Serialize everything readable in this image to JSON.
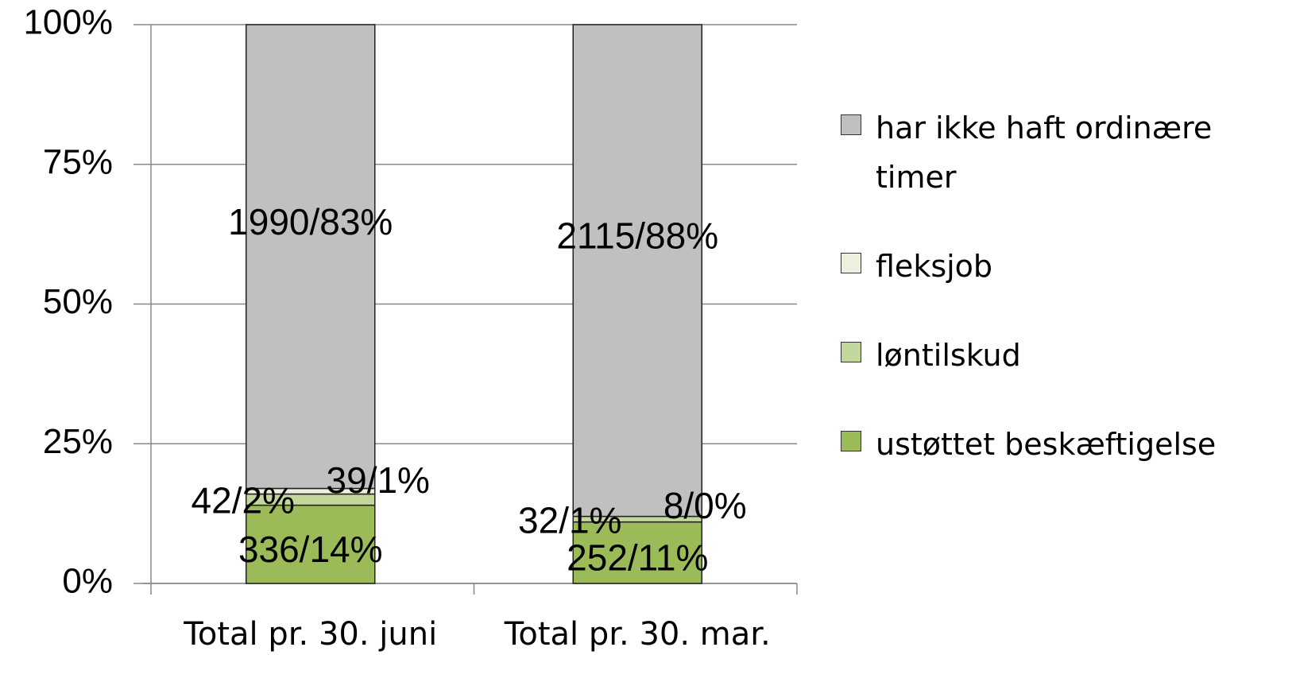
{
  "chart_data": {
    "type": "stacked_bar",
    "categories": [
      "Total pr. 30. juni",
      "Total pr. 30. mar."
    ],
    "series": [
      {
        "name": "ustøttet beskæftigelse",
        "color": "#9bbb59",
        "values": [
          14,
          11
        ],
        "value_labels": [
          "336/14%",
          "252/11%"
        ]
      },
      {
        "name": "løntilskud",
        "color": "#c3d69b",
        "values": [
          2,
          1
        ],
        "value_labels": [
          "42/2%",
          "32/1%"
        ]
      },
      {
        "name": "fleksjob",
        "color": "#ebf1de",
        "values": [
          1,
          0
        ],
        "value_labels": [
          "39/1%",
          "8/0%"
        ]
      },
      {
        "name": "har ikke haft ordinære timer",
        "color": "#c0c0c0",
        "values": [
          83,
          88
        ],
        "value_labels": [
          "1990/83%",
          "2115/88%"
        ]
      }
    ],
    "ylim": [
      0,
      100
    ],
    "yticks": [
      {
        "value": 0,
        "label": "0%"
      },
      {
        "value": 25,
        "label": "25%"
      },
      {
        "value": 50,
        "label": "50%"
      },
      {
        "value": 75,
        "label": "75%"
      },
      {
        "value": 100,
        "label": "100%"
      }
    ],
    "grid": true,
    "legend": "right"
  }
}
